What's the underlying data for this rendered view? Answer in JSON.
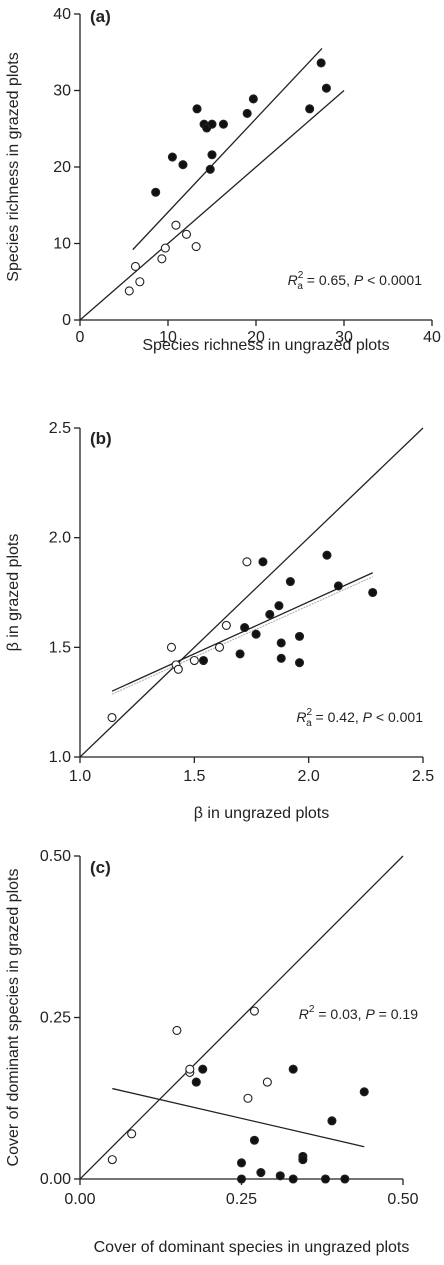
{
  "chart_data": [
    {
      "type": "scatter",
      "panel_label": "(a)",
      "xlabel": "Species richness in ungrazed plots",
      "ylabel": "Species richness in grazed plots",
      "xlim": [
        0,
        40
      ],
      "ylim": [
        0,
        40
      ],
      "xticks": [
        "0",
        "10",
        "20",
        "30",
        "40"
      ],
      "yticks": [
        "0",
        "10",
        "20",
        "30",
        "40"
      ],
      "annotation": {
        "R": "R",
        "sup": "2",
        "sub": "a",
        "rest": " = 0.65, ",
        "P": "P",
        "tail": " < 0.0001"
      },
      "series": [
        {
          "marker": "open",
          "points": [
            [
              5.6,
              3.8
            ],
            [
              6.3,
              7.0
            ],
            [
              6.8,
              5.0
            ],
            [
              9.3,
              8.0
            ],
            [
              9.7,
              9.4
            ],
            [
              10.9,
              12.4
            ],
            [
              12.1,
              11.2
            ],
            [
              13.2,
              9.6
            ]
          ]
        },
        {
          "marker": "filled",
          "points": [
            [
              8.6,
              16.7
            ],
            [
              10.5,
              21.3
            ],
            [
              11.7,
              20.3
            ],
            [
              13.3,
              27.6
            ],
            [
              14.1,
              25.6
            ],
            [
              14.4,
              25.1
            ],
            [
              15.0,
              25.6
            ],
            [
              14.8,
              19.7
            ],
            [
              15.0,
              21.6
            ],
            [
              16.3,
              25.6
            ],
            [
              19.0,
              27.0
            ],
            [
              19.7,
              28.9
            ],
            [
              26.1,
              27.6
            ],
            [
              27.4,
              33.6
            ],
            [
              28.0,
              30.3
            ]
          ]
        }
      ],
      "lines": [
        {
          "from": [
            0,
            0
          ],
          "to": [
            30,
            30
          ]
        },
        {
          "from": [
            6,
            9.2
          ],
          "to": [
            27.5,
            35.5
          ]
        }
      ]
    },
    {
      "type": "scatter",
      "panel_label": "(b)",
      "xlabel": "β in ungrazed plots",
      "ylabel": "β in grazed plots",
      "xlim": [
        1.0,
        2.5
      ],
      "ylim": [
        1.0,
        2.5
      ],
      "xticks": [
        "1.0",
        "1.5",
        "2.0",
        "2.5"
      ],
      "yticks": [
        "1.0",
        "1.5",
        "2.0",
        "2.5"
      ],
      "annotation": {
        "R": "R",
        "sup": "2",
        "sub": "a",
        "rest": " = 0.42, ",
        "P": "P",
        "tail": " < 0.001"
      },
      "series": [
        {
          "marker": "open",
          "points": [
            [
              1.14,
              1.18
            ],
            [
              1.4,
              1.5
            ],
            [
              1.42,
              1.42
            ],
            [
              1.43,
              1.4
            ],
            [
              1.5,
              1.44
            ],
            [
              1.61,
              1.5
            ],
            [
              1.64,
              1.6
            ],
            [
              1.73,
              1.89
            ]
          ]
        },
        {
          "marker": "filled",
          "points": [
            [
              1.54,
              1.44
            ],
            [
              1.7,
              1.47
            ],
            [
              1.72,
              1.59
            ],
            [
              1.77,
              1.56
            ],
            [
              1.8,
              1.89
            ],
            [
              1.83,
              1.65
            ],
            [
              1.87,
              1.69
            ],
            [
              1.88,
              1.52
            ],
            [
              1.88,
              1.45
            ],
            [
              1.92,
              1.8
            ],
            [
              1.96,
              1.55
            ],
            [
              1.96,
              1.43
            ],
            [
              2.08,
              1.92
            ],
            [
              2.13,
              1.78
            ],
            [
              2.28,
              1.75
            ]
          ]
        }
      ],
      "lines": [
        {
          "from": [
            1.0,
            1.0
          ],
          "to": [
            2.5,
            2.5
          ]
        },
        {
          "from": [
            1.14,
            1.3
          ],
          "to": [
            2.28,
            1.84
          ]
        }
      ]
    },
    {
      "type": "scatter",
      "panel_label": "(c)",
      "xlabel": "Cover of dominant species in ungrazed plots",
      "ylabel": "Cover of dominant species in grazed plots",
      "xlim": [
        0,
        0.5
      ],
      "ylim": [
        0,
        0.5
      ],
      "xticks": [
        "0.00",
        "0.25",
        "0.50"
      ],
      "yticks": [
        "0.00",
        "0.25",
        "0.50"
      ],
      "annotation": {
        "R": "R",
        "sup": "2",
        "sub": "",
        "rest": " = 0.03, ",
        "P": "P",
        "tail": " = 0.19"
      },
      "series": [
        {
          "marker": "open",
          "points": [
            [
              0.05,
              0.03
            ],
            [
              0.08,
              0.07
            ],
            [
              0.15,
              0.23
            ],
            [
              0.17,
              0.165
            ],
            [
              0.17,
              0.17
            ],
            [
              0.26,
              0.125
            ],
            [
              0.27,
              0.26
            ],
            [
              0.29,
              0.15
            ]
          ]
        },
        {
          "marker": "filled",
          "points": [
            [
              0.18,
              0.15
            ],
            [
              0.19,
              0.17
            ],
            [
              0.25,
              0.025
            ],
            [
              0.25,
              0.0
            ],
            [
              0.27,
              0.06
            ],
            [
              0.28,
              0.01
            ],
            [
              0.31,
              0.005
            ],
            [
              0.33,
              0.17
            ],
            [
              0.33,
              0.0
            ],
            [
              0.345,
              0.035
            ],
            [
              0.345,
              0.03
            ],
            [
              0.38,
              0.0
            ],
            [
              0.39,
              0.09
            ],
            [
              0.41,
              0.0
            ],
            [
              0.44,
              0.135
            ]
          ]
        }
      ],
      "lines": [
        {
          "from": [
            0,
            0
          ],
          "to": [
            0.5,
            0.5
          ]
        },
        {
          "from": [
            0.05,
            0.14
          ],
          "to": [
            0.44,
            0.05
          ]
        }
      ]
    }
  ],
  "colors": {
    "ink": "#222222",
    "open_fill": "#ffffff",
    "filled_fill": "#111111",
    "grey_line": "#aaaaaa"
  }
}
